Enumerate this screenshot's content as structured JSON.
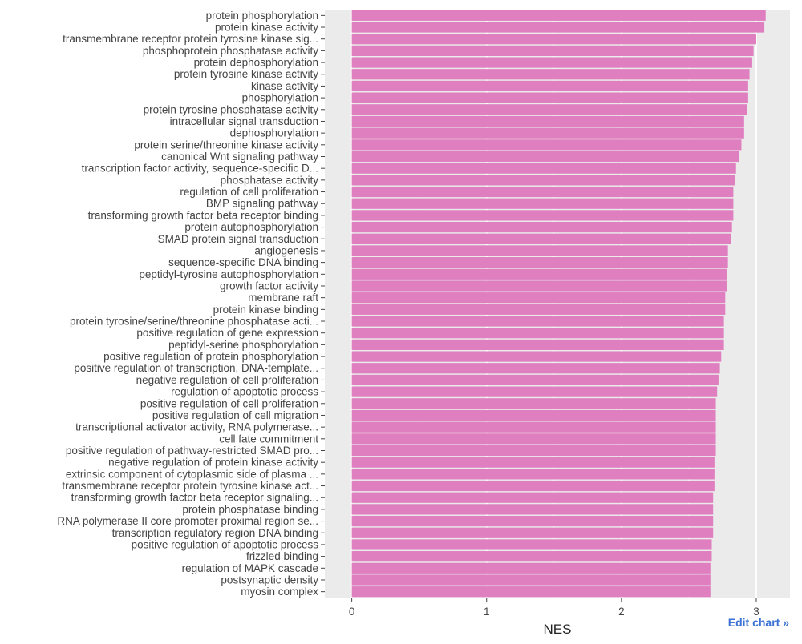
{
  "chart_data": {
    "type": "bar",
    "orientation": "horizontal",
    "xlabel": "NES",
    "ylabel": "",
    "xlim": [
      -0.2,
      3.25
    ],
    "xticks": [
      0,
      1,
      2,
      3
    ],
    "grid": true,
    "bar_color": "#e07fc0",
    "panel_background": "#ebebeb",
    "categories": [
      "protein phosphorylation",
      "protein kinase activity",
      "transmembrane receptor protein tyrosine kinase sig...",
      "phosphoprotein phosphatase activity",
      "protein dephosphorylation",
      "protein tyrosine kinase activity",
      "kinase activity",
      "phosphorylation",
      "protein tyrosine phosphatase activity",
      "intracellular signal transduction",
      "dephosphorylation",
      "protein serine/threonine kinase activity",
      "canonical Wnt signaling pathway",
      "transcription factor activity, sequence-specific D...",
      "phosphatase activity",
      "regulation of cell proliferation",
      "BMP signaling pathway",
      "transforming growth factor beta receptor binding",
      "protein autophosphorylation",
      "SMAD protein signal transduction",
      "angiogenesis",
      "sequence-specific DNA binding",
      "peptidyl-tyrosine autophosphorylation",
      "growth factor activity",
      "membrane raft",
      "protein kinase binding",
      "protein tyrosine/serine/threonine phosphatase acti...",
      "positive regulation of gene expression",
      "peptidyl-serine phosphorylation",
      "positive regulation of protein phosphorylation",
      "positive regulation of transcription, DNA-template...",
      "negative regulation of cell proliferation",
      "regulation of apoptotic process",
      "positive regulation of cell proliferation",
      "positive regulation of cell migration",
      "transcriptional activator activity, RNA polymerase...",
      "cell fate commitment",
      "positive regulation of pathway-restricted SMAD pro...",
      "negative regulation of protein kinase activity",
      "extrinsic component of cytoplasmic side of plasma ...",
      "transmembrane receptor protein tyrosine kinase act...",
      "transforming growth factor beta receptor signaling...",
      "protein phosphatase binding",
      "RNA polymerase II core promoter proximal region se...",
      "transcription regulatory region DNA binding",
      "positive regulation of apoptotic process",
      "frizzled binding",
      "regulation of MAPK cascade",
      "postsynaptic density",
      "myosin complex"
    ],
    "values": [
      3.07,
      3.06,
      3.0,
      2.98,
      2.97,
      2.95,
      2.94,
      2.94,
      2.93,
      2.91,
      2.91,
      2.89,
      2.87,
      2.85,
      2.84,
      2.83,
      2.83,
      2.83,
      2.82,
      2.81,
      2.79,
      2.79,
      2.78,
      2.78,
      2.77,
      2.77,
      2.76,
      2.76,
      2.76,
      2.74,
      2.73,
      2.72,
      2.71,
      2.7,
      2.7,
      2.7,
      2.7,
      2.7,
      2.69,
      2.69,
      2.69,
      2.68,
      2.68,
      2.68,
      2.68,
      2.67,
      2.67,
      2.66,
      2.66,
      2.66
    ]
  },
  "edit_link": {
    "label": "Edit chart »"
  }
}
